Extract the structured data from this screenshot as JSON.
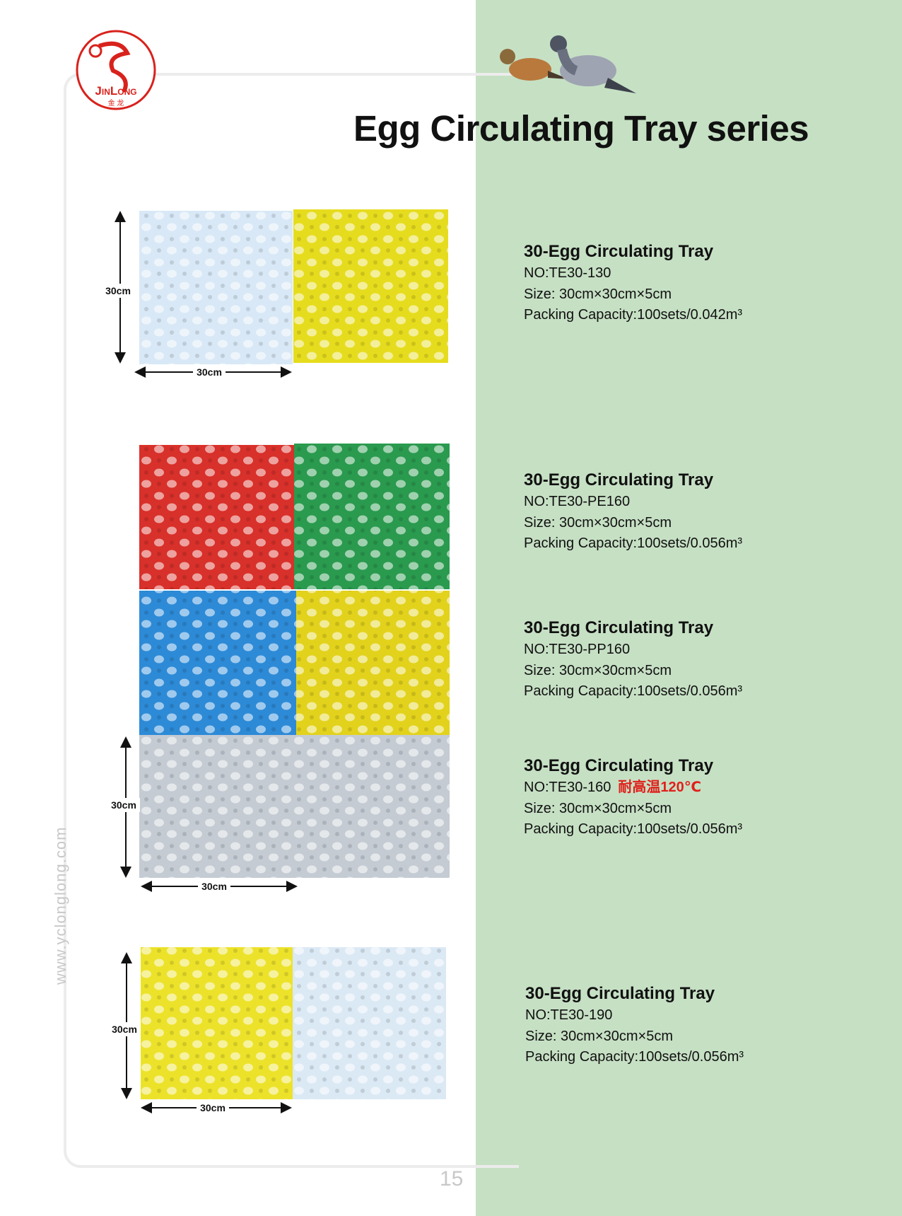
{
  "logo": {
    "brand": "JinLong",
    "chinese": "金 龙"
  },
  "header": {
    "title": "Egg Circulating Tray series"
  },
  "dimensions": [
    "30cm",
    "30cm",
    "30cm",
    "30cm",
    "30cm",
    "30cm"
  ],
  "products": [
    {
      "name": "30-Egg Circulating Tray",
      "model": "NO:TE30-130",
      "size": "Size:  30cm×30cm×5cm",
      "packing": "Packing Capacity:100sets/0.042m³"
    },
    {
      "name": "30-Egg Circulating Tray",
      "model": "NO:TE30-PE160",
      "size": "Size:  30cm×30cm×5cm",
      "packing": "Packing Capacity:100sets/0.056m³"
    },
    {
      "name": "30-Egg Circulating Tray",
      "model": "NO:TE30-PP160",
      "size": "Size:  30cm×30cm×5cm",
      "packing": "Packing Capacity:100sets/0.056m³"
    },
    {
      "name": "30-Egg Circulating Tray",
      "model": "NO:TE30-160",
      "note": "耐高温120℃",
      "size": "Size:  30cm×30cm×5cm",
      "packing": "Packing Capacity:100sets/0.056m³"
    },
    {
      "name": "30-Egg Circulating Tray",
      "model": "NO:TE30-190",
      "size": "Size:  30cm×30cm×5cm",
      "packing": "Packing Capacity:100sets/0.056m³"
    }
  ],
  "website": "www.yclonglong.com",
  "page_number": "15"
}
